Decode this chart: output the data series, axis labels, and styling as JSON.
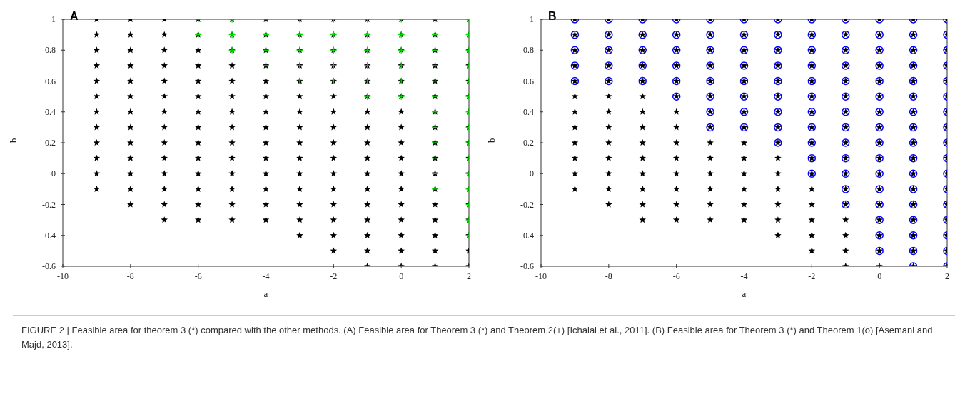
{
  "chart_data": [
    {
      "type": "scatter",
      "title": "A",
      "xlabel": "a",
      "ylabel": "b",
      "xlim": [
        -10,
        2
      ],
      "xticks": [
        -10,
        -8,
        -6,
        -4,
        -2,
        0,
        2
      ],
      "ylim": [
        -0.6,
        1
      ],
      "yticks": [
        -0.6,
        -0.4,
        -0.2,
        0,
        0.2,
        0.4,
        0.6,
        0.8,
        1
      ],
      "grid": false,
      "legend": false,
      "series": [
        {
          "color": "#000000",
          "marker": "star",
          "x": [
            -9,
            -9,
            -9,
            -9,
            -9,
            -9,
            -9,
            -9,
            -9,
            -9,
            -9,
            -9,
            -8,
            -8,
            -8,
            -8,
            -8,
            -8,
            -8,
            -8,
            -8,
            -8,
            -8,
            -8,
            -8,
            -7,
            -7,
            -7,
            -7,
            -7,
            -7,
            -7,
            -7,
            -7,
            -7,
            -7,
            -7,
            -7,
            -7,
            -6,
            -6,
            -6,
            -6,
            -6,
            -6,
            -6,
            -6,
            -6,
            -6,
            -6,
            -6,
            -6,
            -6,
            -5,
            -5,
            -5,
            -5,
            -5,
            -5,
            -5,
            -5,
            -5,
            -5,
            -5,
            -5,
            -5,
            -5,
            -4,
            -4,
            -4,
            -4,
            -4,
            -4,
            -4,
            -4,
            -4,
            -4,
            -4,
            -4,
            -4,
            -4,
            -3,
            -3,
            -3,
            -3,
            -3,
            -3,
            -3,
            -3,
            -3,
            -3,
            -3,
            -3,
            -3,
            -3,
            -3,
            -2,
            -2,
            -2,
            -2,
            -2,
            -2,
            -2,
            -2,
            -2,
            -2,
            -2,
            -2,
            -2,
            -2,
            -2,
            -2,
            -1,
            -1,
            -1,
            -1,
            -1,
            -1,
            -1,
            -1,
            -1,
            -1,
            -1,
            -1,
            -1,
            -1,
            -1,
            -1,
            -1,
            0,
            0,
            0,
            0,
            0,
            0,
            0,
            0,
            0,
            0,
            0,
            0,
            0,
            0,
            0,
            0,
            0,
            1,
            1,
            1,
            1,
            1,
            1,
            1,
            1,
            1,
            1,
            1,
            1,
            1,
            1,
            1,
            1,
            1,
            2,
            2,
            2,
            2,
            2,
            2,
            2,
            2,
            2,
            2,
            2,
            2,
            2,
            2,
            2,
            2,
            2
          ],
          "values": [
            -0.1,
            0,
            0.1,
            0.2,
            0.3,
            0.4,
            0.5,
            0.6,
            0.7,
            0.8,
            0.9,
            1,
            -0.2,
            -0.1,
            0,
            0.1,
            0.2,
            0.3,
            0.4,
            0.5,
            0.6,
            0.7,
            0.8,
            0.9,
            1,
            -0.3,
            -0.2,
            -0.1,
            0,
            0.1,
            0.2,
            0.3,
            0.4,
            0.5,
            0.6,
            0.7,
            0.8,
            0.9,
            1,
            -0.3,
            -0.2,
            -0.1,
            0,
            0.1,
            0.2,
            0.3,
            0.4,
            0.5,
            0.6,
            0.7,
            0.8,
            0.9,
            1,
            -0.3,
            -0.2,
            -0.1,
            0,
            0.1,
            0.2,
            0.3,
            0.4,
            0.5,
            0.6,
            0.7,
            0.8,
            0.9,
            1,
            -0.3,
            -0.2,
            -0.1,
            0,
            0.1,
            0.2,
            0.3,
            0.4,
            0.5,
            0.6,
            0.7,
            0.8,
            0.9,
            1,
            -0.4,
            -0.3,
            -0.2,
            -0.1,
            0,
            0.1,
            0.2,
            0.3,
            0.4,
            0.5,
            0.6,
            0.7,
            0.8,
            0.9,
            1,
            -0.5,
            -0.4,
            -0.3,
            -0.2,
            -0.1,
            0,
            0.1,
            0.2,
            0.3,
            0.4,
            0.5,
            0.6,
            0.7,
            0.8,
            0.9,
            1,
            -0.6,
            -0.5,
            -0.4,
            -0.3,
            -0.2,
            -0.1,
            0,
            0.1,
            0.2,
            0.3,
            0.4,
            0.5,
            0.6,
            0.7,
            0.8,
            0.9,
            1,
            -0.6,
            -0.5,
            -0.4,
            -0.3,
            -0.2,
            -0.1,
            0,
            0.1,
            0.2,
            0.3,
            0.4,
            0.5,
            0.6,
            0.7,
            0.8,
            0.9,
            1,
            -0.6,
            -0.5,
            -0.4,
            -0.3,
            -0.2,
            -0.1,
            0,
            0.1,
            0.2,
            0.3,
            0.4,
            0.5,
            0.6,
            0.7,
            0.8,
            0.9,
            1,
            -0.6,
            -0.5,
            -0.4,
            -0.3,
            -0.2,
            -0.1,
            0,
            0.1,
            0.2,
            0.3,
            0.4,
            0.5,
            0.6,
            0.7,
            0.8,
            0.9,
            1
          ]
        },
        {
          "color": "#00e000",
          "marker": "cross",
          "x": [
            -6,
            -6,
            -5,
            -5,
            -5,
            -4,
            -4,
            -4,
            -4,
            -3,
            -3,
            -3,
            -3,
            -3,
            -2,
            -2,
            -2,
            -2,
            -2,
            -1,
            -1,
            -1,
            -1,
            -1,
            -1,
            0,
            0,
            0,
            0,
            0,
            0,
            1,
            1,
            1,
            1,
            1,
            1,
            1,
            1,
            1,
            1,
            1,
            1,
            2,
            2,
            2,
            2,
            2,
            2,
            2,
            2,
            2,
            2,
            2,
            2,
            2,
            2,
            2
          ],
          "values": [
            0.9,
            1,
            0.8,
            0.9,
            1,
            0.7,
            0.8,
            0.9,
            1,
            0.6,
            0.7,
            0.8,
            0.9,
            1,
            0.6,
            0.7,
            0.8,
            0.9,
            1,
            0.5,
            0.6,
            0.7,
            0.8,
            0.9,
            1,
            0.5,
            0.6,
            0.7,
            0.8,
            0.9,
            1,
            -0.1,
            0,
            0.1,
            0.2,
            0.3,
            0.4,
            0.5,
            0.6,
            0.7,
            0.8,
            0.9,
            1,
            -0.4,
            -0.3,
            -0.2,
            -0.1,
            0,
            0.1,
            0.2,
            0.3,
            0.4,
            0.5,
            0.6,
            0.7,
            0.8,
            0.9,
            1
          ]
        }
      ],
      "annotations": [
        "FIGURE 2 | Feasible area for theorem 3 (*) compared with the other methods. (A) Feasible area for Theorem 3 (*) and Theorem 2(+) [Ichalal et al., 2011]. (B) Feasible area for Theorem 3 (*) and Theorem 1(o) [Asemani and Majd, 2013]."
      ]
    },
    {
      "type": "scatter",
      "title": "B",
      "xlabel": "a",
      "ylabel": "b",
      "xlim": [
        -10,
        2
      ],
      "xticks": [
        -10,
        -8,
        -6,
        -4,
        -2,
        0,
        2
      ],
      "ylim": [
        -0.6,
        1
      ],
      "yticks": [
        -0.6,
        -0.4,
        -0.2,
        0,
        0.2,
        0.4,
        0.6,
        0.8,
        1
      ],
      "grid": false,
      "legend": false,
      "series": [
        {
          "color": "#000000",
          "marker": "star",
          "x": [
            -9,
            -9,
            -9,
            -9,
            -9,
            -9,
            -9,
            -9,
            -9,
            -9,
            -9,
            -9,
            -8,
            -8,
            -8,
            -8,
            -8,
            -8,
            -8,
            -8,
            -8,
            -8,
            -8,
            -8,
            -8,
            -7,
            -7,
            -7,
            -7,
            -7,
            -7,
            -7,
            -7,
            -7,
            -7,
            -7,
            -7,
            -7,
            -7,
            -6,
            -6,
            -6,
            -6,
            -6,
            -6,
            -6,
            -6,
            -6,
            -6,
            -6,
            -6,
            -6,
            -6,
            -5,
            -5,
            -5,
            -5,
            -5,
            -5,
            -5,
            -5,
            -5,
            -5,
            -5,
            -5,
            -5,
            -5,
            -4,
            -4,
            -4,
            -4,
            -4,
            -4,
            -4,
            -4,
            -4,
            -4,
            -4,
            -4,
            -4,
            -4,
            -3,
            -3,
            -3,
            -3,
            -3,
            -3,
            -3,
            -3,
            -3,
            -3,
            -3,
            -3,
            -3,
            -3,
            -3,
            -2,
            -2,
            -2,
            -2,
            -2,
            -2,
            -2,
            -2,
            -2,
            -2,
            -2,
            -2,
            -2,
            -2,
            -2,
            -2,
            -1,
            -1,
            -1,
            -1,
            -1,
            -1,
            -1,
            -1,
            -1,
            -1,
            -1,
            -1,
            -1,
            -1,
            -1,
            -1,
            -1,
            0,
            0,
            0,
            0,
            0,
            0,
            0,
            0,
            0,
            0,
            0,
            0,
            0,
            0,
            0,
            0,
            0,
            1,
            1,
            1,
            1,
            1,
            1,
            1,
            1,
            1,
            1,
            1,
            1,
            1,
            1,
            1,
            1,
            1,
            2,
            2,
            2,
            2,
            2,
            2,
            2,
            2,
            2,
            2,
            2,
            2,
            2,
            2,
            2,
            2,
            2
          ],
          "values": [
            -0.1,
            0,
            0.1,
            0.2,
            0.3,
            0.4,
            0.5,
            0.6,
            0.7,
            0.8,
            0.9,
            1,
            -0.2,
            -0.1,
            0,
            0.1,
            0.2,
            0.3,
            0.4,
            0.5,
            0.6,
            0.7,
            0.8,
            0.9,
            1,
            -0.3,
            -0.2,
            -0.1,
            0,
            0.1,
            0.2,
            0.3,
            0.4,
            0.5,
            0.6,
            0.7,
            0.8,
            0.9,
            1,
            -0.3,
            -0.2,
            -0.1,
            0,
            0.1,
            0.2,
            0.3,
            0.4,
            0.5,
            0.6,
            0.7,
            0.8,
            0.9,
            1,
            -0.3,
            -0.2,
            -0.1,
            0,
            0.1,
            0.2,
            0.3,
            0.4,
            0.5,
            0.6,
            0.7,
            0.8,
            0.9,
            1,
            -0.3,
            -0.2,
            -0.1,
            0,
            0.1,
            0.2,
            0.3,
            0.4,
            0.5,
            0.6,
            0.7,
            0.8,
            0.9,
            1,
            -0.4,
            -0.3,
            -0.2,
            -0.1,
            0,
            0.1,
            0.2,
            0.3,
            0.4,
            0.5,
            0.6,
            0.7,
            0.8,
            0.9,
            1,
            -0.5,
            -0.4,
            -0.3,
            -0.2,
            -0.1,
            0,
            0.1,
            0.2,
            0.3,
            0.4,
            0.5,
            0.6,
            0.7,
            0.8,
            0.9,
            1,
            -0.6,
            -0.5,
            -0.4,
            -0.3,
            -0.2,
            -0.1,
            0,
            0.1,
            0.2,
            0.3,
            0.4,
            0.5,
            0.6,
            0.7,
            0.8,
            0.9,
            1,
            -0.6,
            -0.5,
            -0.4,
            -0.3,
            -0.2,
            -0.1,
            0,
            0.1,
            0.2,
            0.3,
            0.4,
            0.5,
            0.6,
            0.7,
            0.8,
            0.9,
            1,
            -0.6,
            -0.5,
            -0.4,
            -0.3,
            -0.2,
            -0.1,
            0,
            0.1,
            0.2,
            0.3,
            0.4,
            0.5,
            0.6,
            0.7,
            0.8,
            0.9,
            1,
            -0.6,
            -0.5,
            -0.4,
            -0.3,
            -0.2,
            -0.1,
            0,
            0.1,
            0.2,
            0.3,
            0.4,
            0.5,
            0.6,
            0.7,
            0.8,
            0.9,
            1
          ]
        },
        {
          "color": "#0000ff",
          "marker": "circle",
          "x": [
            -9,
            -9,
            -9,
            -9,
            -9,
            -8,
            -8,
            -8,
            -8,
            -8,
            -7,
            -7,
            -7,
            -7,
            -7,
            -6,
            -6,
            -6,
            -6,
            -6,
            -6,
            -5,
            -5,
            -5,
            -5,
            -5,
            -5,
            -5,
            -5,
            -4,
            -4,
            -4,
            -4,
            -4,
            -4,
            -4,
            -4,
            -3,
            -3,
            -3,
            -3,
            -3,
            -3,
            -3,
            -3,
            -3,
            -2,
            -2,
            -2,
            -2,
            -2,
            -2,
            -2,
            -2,
            -2,
            -2,
            -2,
            -1,
            -1,
            -1,
            -1,
            -1,
            -1,
            -1,
            -1,
            -1,
            -1,
            -1,
            -1,
            -1,
            0,
            0,
            0,
            0,
            0,
            0,
            0,
            0,
            0,
            0,
            0,
            0,
            0,
            0,
            0,
            0,
            1,
            1,
            1,
            1,
            1,
            1,
            1,
            1,
            1,
            1,
            1,
            1,
            1,
            1,
            1,
            1,
            1,
            2,
            2,
            2,
            2,
            2,
            2,
            2,
            2,
            2,
            2,
            2,
            2,
            2,
            2,
            2,
            2,
            2
          ],
          "values": [
            0.6,
            0.7,
            0.8,
            0.9,
            1,
            0.6,
            0.7,
            0.8,
            0.9,
            1,
            0.6,
            0.7,
            0.8,
            0.9,
            1,
            0.5,
            0.6,
            0.7,
            0.8,
            0.9,
            1,
            0.3,
            0.4,
            0.5,
            0.6,
            0.7,
            0.8,
            0.9,
            1,
            0.3,
            0.4,
            0.5,
            0.6,
            0.7,
            0.8,
            0.9,
            1,
            0.2,
            0.3,
            0.4,
            0.5,
            0.6,
            0.7,
            0.8,
            0.9,
            1,
            0,
            0.1,
            0.2,
            0.3,
            0.4,
            0.5,
            0.6,
            0.7,
            0.8,
            0.9,
            1,
            -0.2,
            -0.1,
            0,
            0.1,
            0.2,
            0.3,
            0.4,
            0.5,
            0.6,
            0.7,
            0.8,
            0.9,
            1,
            -0.5,
            -0.4,
            -0.3,
            -0.2,
            -0.1,
            0,
            0.1,
            0.2,
            0.3,
            0.4,
            0.5,
            0.6,
            0.7,
            0.8,
            0.9,
            1,
            -0.6,
            -0.5,
            -0.4,
            -0.3,
            -0.2,
            -0.1,
            0,
            0.1,
            0.2,
            0.3,
            0.4,
            0.5,
            0.6,
            0.7,
            0.8,
            0.9,
            1,
            -0.6,
            -0.5,
            -0.4,
            -0.3,
            -0.2,
            -0.1,
            0,
            0.1,
            0.2,
            0.3,
            0.4,
            0.5,
            0.6,
            0.7,
            0.8,
            0.9,
            1
          ]
        }
      ]
    }
  ]
}
